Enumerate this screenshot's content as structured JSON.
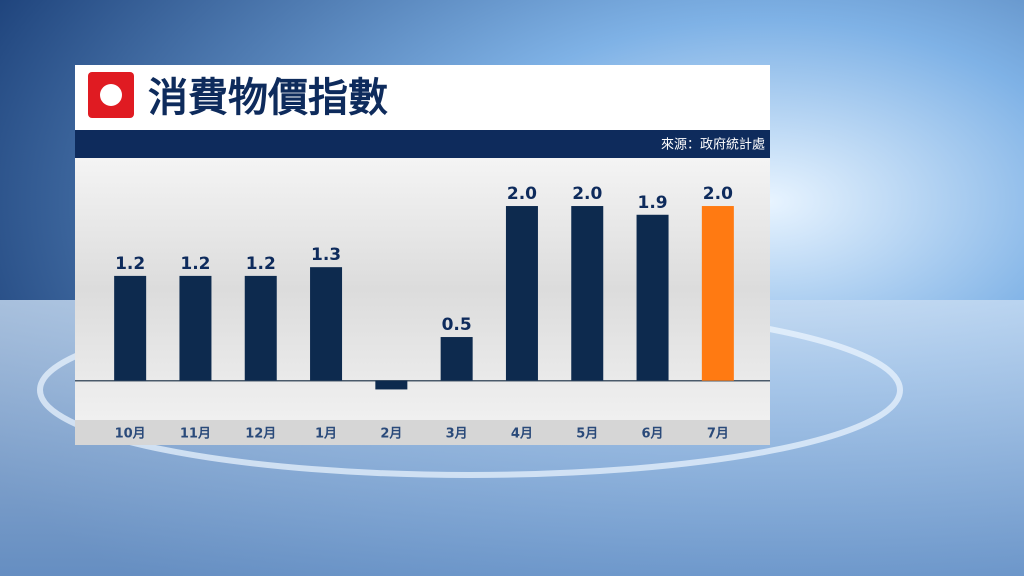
{
  "chart_data": {
    "type": "bar",
    "title": "消費物價指數",
    "source": "來源：政府統計處",
    "categories": [
      "10月",
      "11月",
      "12月",
      "1月",
      "2月",
      "3月",
      "4月",
      "5月",
      "6月",
      "7月"
    ],
    "values": [
      1.2,
      1.2,
      1.2,
      1.3,
      -0.1,
      0.5,
      2.0,
      2.0,
      1.9,
      2.0
    ],
    "value_labels": [
      "1.2",
      "1.2",
      "1.2",
      "1.3",
      null,
      "0.5",
      "2.0",
      "2.0",
      "1.9",
      "2.0"
    ],
    "colors": [
      "#0d2a4e",
      "#0d2a4e",
      "#0d2a4e",
      "#0d2a4e",
      "#0d2a4e",
      "#0d2a4e",
      "#0d2a4e",
      "#0d2a4e",
      "#0d2a4e",
      "#ff7a12"
    ],
    "ylim": [
      -0.45,
      2.55
    ]
  }
}
